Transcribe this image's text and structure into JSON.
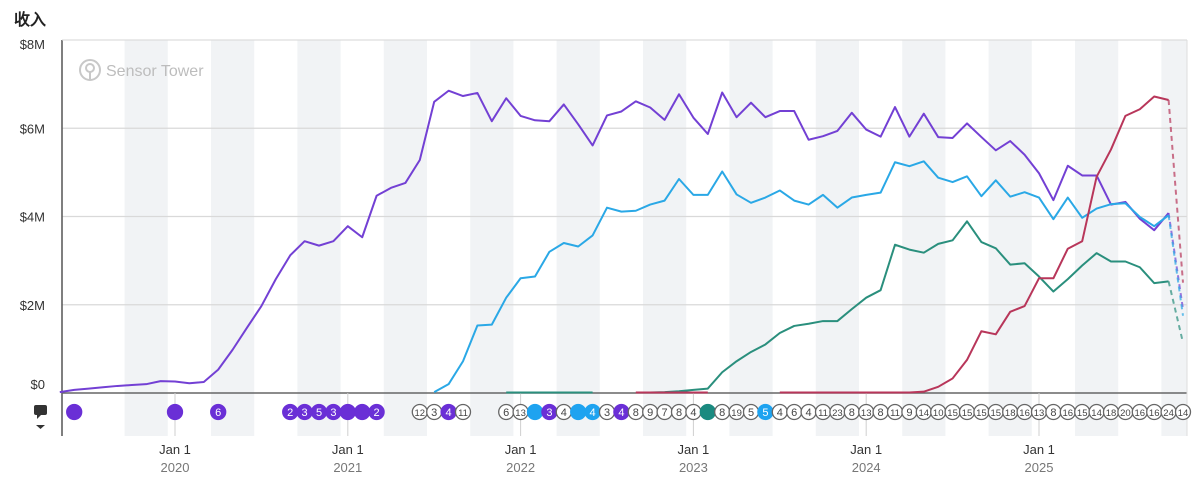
{
  "chart_data": {
    "type": "line",
    "title": "收入",
    "watermark": "Sensor Tower",
    "y_ticks": [
      "$0",
      "$2M",
      "$4M",
      "$6M",
      "$8M"
    ],
    "ylim": [
      0,
      8
    ],
    "y_unit": "USD millions",
    "x_ticks": [
      {
        "label": "Jan 1",
        "year": "2020",
        "date": "2020-01"
      },
      {
        "label": "Jan 1",
        "year": "2021",
        "date": "2021-01"
      },
      {
        "label": "Jan 1",
        "year": "2022",
        "date": "2022-01"
      },
      {
        "label": "Jan 1",
        "year": "2023",
        "date": "2023-01"
      },
      {
        "label": "Jan 1",
        "year": "2024",
        "date": "2024-01"
      },
      {
        "label": "Jan 1",
        "year": "2025",
        "date": "2025-01"
      }
    ],
    "xlim": [
      "2019-05",
      "2025-11"
    ],
    "grid": "horizontal",
    "background_bands": "alternating quarters",
    "series": [
      {
        "color": "#7340d4",
        "start": "2019-05",
        "values": [
          0.02,
          0.07,
          0.1,
          0.13,
          0.16,
          0.18,
          0.2,
          0.27,
          0.26,
          0.22,
          0.25,
          0.53,
          0.98,
          1.48,
          1.97,
          2.58,
          3.12,
          3.44,
          3.34,
          3.44,
          3.78,
          3.53,
          4.47,
          4.65,
          4.76,
          5.28,
          6.6,
          6.85,
          6.73,
          6.8,
          6.16,
          6.68,
          6.28,
          6.18,
          6.16,
          6.54,
          6.09,
          5.61,
          6.29,
          6.38,
          6.61,
          6.47,
          6.19,
          6.77,
          6.24,
          5.87,
          6.81,
          6.25,
          6.58,
          6.25,
          6.39,
          6.39,
          5.74,
          5.82,
          5.94,
          6.35,
          5.97,
          5.81,
          6.48,
          5.81,
          6.33,
          5.8,
          5.78,
          6.11,
          5.8,
          5.5,
          5.71,
          5.4,
          4.98,
          4.37,
          5.15,
          4.93,
          4.93,
          4.27,
          4.33,
          3.95,
          3.69,
          4.08
        ],
        "partial_last": 1.9
      },
      {
        "color": "#2aa8e6",
        "start": "2021-07",
        "values": [
          0.02,
          0.2,
          0.72,
          1.53,
          1.55,
          2.16,
          2.6,
          2.64,
          3.2,
          3.4,
          3.32,
          3.57,
          4.2,
          4.11,
          4.13,
          4.27,
          4.36,
          4.85,
          4.49,
          4.49,
          5.02,
          4.5,
          4.31,
          4.43,
          4.59,
          4.36,
          4.27,
          4.49,
          4.2,
          4.43,
          4.49,
          4.54,
          5.23,
          5.14,
          5.25,
          4.88,
          4.78,
          4.91,
          4.46,
          4.82,
          4.45,
          4.55,
          4.43,
          3.94,
          4.43,
          3.97,
          4.18,
          4.28,
          4.3,
          3.99,
          3.78,
          4.03
        ],
        "partial_last": 1.75
      },
      {
        "color": "#2a8f7d",
        "start": "2021-12",
        "values": [
          0.01,
          0.01,
          0.01,
          0.01,
          0.01,
          0.01,
          0.01,
          null,
          null,
          null,
          0.01,
          0.02,
          0.04,
          0.07,
          0.1,
          0.47,
          0.72,
          0.93,
          1.1,
          1.36,
          1.52,
          1.57,
          1.63,
          1.63,
          1.9,
          2.16,
          2.33,
          3.36,
          3.25,
          3.18,
          3.38,
          3.46,
          3.89,
          3.42,
          3.28,
          2.91,
          2.94,
          2.64,
          2.3,
          2.58,
          2.89,
          3.17,
          2.98,
          2.98,
          2.85,
          2.49,
          2.53
        ],
        "partial_last": 1.14
      },
      {
        "color": "#b8365a",
        "start": "2022-09",
        "values": [
          0.01,
          0.01,
          0.01,
          0.01,
          0.01,
          0.01,
          null,
          null,
          null,
          null,
          0.01,
          0.01,
          0.01,
          0.01,
          0.01,
          0.01,
          0.01,
          0.01,
          0.01,
          0.01,
          0.03,
          0.14,
          0.33,
          0.75,
          1.4,
          1.33,
          1.84,
          1.97,
          2.6,
          2.6,
          3.27,
          3.44,
          4.9,
          5.52,
          6.28,
          6.43,
          6.72,
          6.64
        ],
        "partial_last": 2.5
      }
    ],
    "annotation_colors": {
      "purple": "#6a2fd6",
      "blue": "#1ea3f0",
      "teal": "#1a8a80",
      "outline": "#ffffff"
    },
    "annotations": [
      {
        "date": "2019-06",
        "label": "",
        "style": "purple"
      },
      {
        "date": "2020-01",
        "label": "",
        "style": "purple"
      },
      {
        "date": "2020-04",
        "label": "6",
        "style": "purple"
      },
      {
        "date": "2020-09",
        "label": "2",
        "style": "purple"
      },
      {
        "date": "2020-10",
        "label": "3",
        "style": "purple"
      },
      {
        "date": "2020-11",
        "label": "5",
        "style": "purple"
      },
      {
        "date": "2020-12",
        "label": "3",
        "style": "purple"
      },
      {
        "date": "2021-01",
        "label": "",
        "style": "purple"
      },
      {
        "date": "2021-02",
        "label": "",
        "style": "purple"
      },
      {
        "date": "2021-03",
        "label": "2",
        "style": "purple"
      },
      {
        "date": "2021-06",
        "label": "12",
        "style": "outline"
      },
      {
        "date": "2021-07",
        "label": "3",
        "style": "outline"
      },
      {
        "date": "2021-08",
        "label": "4",
        "style": "purple"
      },
      {
        "date": "2021-09",
        "label": "11",
        "style": "outline"
      },
      {
        "date": "2021-12",
        "label": "6",
        "style": "outline"
      },
      {
        "date": "2022-01",
        "label": "13",
        "style": "outline"
      },
      {
        "date": "2022-02",
        "label": "",
        "style": "blue"
      },
      {
        "date": "2022-03",
        "label": "3",
        "style": "purple"
      },
      {
        "date": "2022-04",
        "label": "4",
        "style": "outline"
      },
      {
        "date": "2022-05",
        "label": "",
        "style": "blue"
      },
      {
        "date": "2022-06",
        "label": "4",
        "style": "blue"
      },
      {
        "date": "2022-07",
        "label": "3",
        "style": "outline"
      },
      {
        "date": "2022-08",
        "label": "4",
        "style": "purple"
      },
      {
        "date": "2022-09",
        "label": "8",
        "style": "outline"
      },
      {
        "date": "2022-10",
        "label": "9",
        "style": "outline"
      },
      {
        "date": "2022-11",
        "label": "7",
        "style": "outline"
      },
      {
        "date": "2022-12",
        "label": "8",
        "style": "outline"
      },
      {
        "date": "2023-01",
        "label": "4",
        "style": "outline"
      },
      {
        "date": "2023-02",
        "label": "",
        "style": "teal"
      },
      {
        "date": "2023-03",
        "label": "8",
        "style": "outline"
      },
      {
        "date": "2023-04",
        "label": "19",
        "style": "outline"
      },
      {
        "date": "2023-05",
        "label": "5",
        "style": "outline"
      },
      {
        "date": "2023-06",
        "label": "5",
        "style": "blue"
      },
      {
        "date": "2023-07",
        "label": "4",
        "style": "outline"
      },
      {
        "date": "2023-08",
        "label": "6",
        "style": "outline"
      },
      {
        "date": "2023-09",
        "label": "4",
        "style": "outline"
      },
      {
        "date": "2023-10",
        "label": "11",
        "style": "outline"
      },
      {
        "date": "2023-11",
        "label": "23",
        "style": "outline"
      },
      {
        "date": "2023-12",
        "label": "8",
        "style": "outline"
      },
      {
        "date": "2024-01",
        "label": "13",
        "style": "outline"
      },
      {
        "date": "2024-02",
        "label": "8",
        "style": "outline"
      },
      {
        "date": "2024-03",
        "label": "11",
        "style": "outline"
      },
      {
        "date": "2024-04",
        "label": "9",
        "style": "outline"
      },
      {
        "date": "2024-05",
        "label": "14",
        "style": "outline"
      },
      {
        "date": "2024-06",
        "label": "10",
        "style": "outline"
      },
      {
        "date": "2024-07",
        "label": "15",
        "style": "outline"
      },
      {
        "date": "2024-08",
        "label": "15",
        "style": "outline"
      },
      {
        "date": "2024-09",
        "label": "15",
        "style": "outline"
      },
      {
        "date": "2024-10",
        "label": "15",
        "style": "outline"
      },
      {
        "date": "2024-11",
        "label": "18",
        "style": "outline"
      },
      {
        "date": "2024-12",
        "label": "16",
        "style": "outline"
      },
      {
        "date": "2025-01",
        "label": "13",
        "style": "outline"
      },
      {
        "date": "2025-02",
        "label": "8",
        "style": "outline"
      },
      {
        "date": "2025-03",
        "label": "16",
        "style": "outline"
      },
      {
        "date": "2025-04",
        "label": "15",
        "style": "outline"
      },
      {
        "date": "2025-05",
        "label": "14",
        "style": "outline"
      },
      {
        "date": "2025-06",
        "label": "18",
        "style": "outline"
      },
      {
        "date": "2025-07",
        "label": "20",
        "style": "outline"
      },
      {
        "date": "2025-08",
        "label": "16",
        "style": "outline"
      },
      {
        "date": "2025-09",
        "label": "16",
        "style": "outline"
      },
      {
        "date": "2025-10",
        "label": "24",
        "style": "outline"
      },
      {
        "date": "2025-11",
        "label": "14",
        "style": "outline"
      }
    ]
  }
}
